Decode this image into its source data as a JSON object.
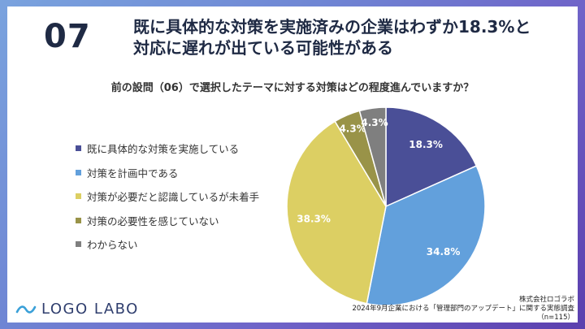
{
  "header": {
    "number": "07",
    "title_line1": "既に具体的な対策を実施済みの企業はわずか18.3%と",
    "title_line2": "対応に遅れが出ている可能性がある"
  },
  "chart_data": {
    "type": "pie",
    "title": "前の設問（06）で選択したテーマに対する対策はどの程度進んでいますか？",
    "categories": [
      "既に具体的な対策を実施している",
      "対策を計画中である",
      "対策が必要だと認識しているが未着手",
      "対策の必要性を感じていない",
      "わからない"
    ],
    "values": [
      18.3,
      34.8,
      38.3,
      4.3,
      4.3
    ],
    "labels": [
      "18.3%",
      "34.8%",
      "38.3%",
      "4.3%",
      "4.3%"
    ],
    "colors": [
      "#4a4f97",
      "#62a0dc",
      "#dccf63",
      "#999348",
      "#7f7f7f"
    ],
    "legend_position": "left"
  },
  "footer": {
    "logo_text": "LOGO LABO",
    "source_line1": "株式会社ロゴラボ",
    "source_line2": "2024年9月企業における「管理部門のアップデート」に関する実態調査",
    "source_line3": "（n=115）"
  }
}
